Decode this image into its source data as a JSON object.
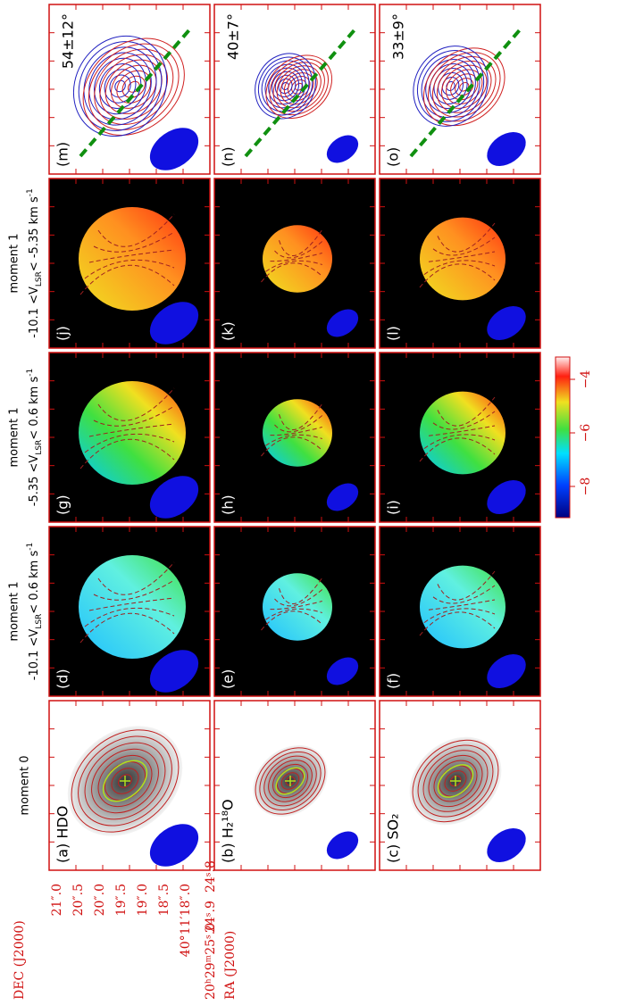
{
  "rows": [
    {
      "panels": [
        {
          "label": "(m)",
          "angle": "54±12°"
        },
        {
          "label": "(n)",
          "angle": "40±7°"
        },
        {
          "label": "(o)",
          "angle": "33±9°"
        }
      ]
    },
    {
      "header": {
        "title": "moment 1",
        "range": [
          "-10.1 <V",
          "LSR",
          "< -5.35 km s",
          "-1"
        ]
      },
      "panels": [
        {
          "label": "(j)"
        },
        {
          "label": "(k)"
        },
        {
          "label": "(l)"
        }
      ]
    },
    {
      "header": {
        "title": "moment 1",
        "range": [
          "-5.35 <V",
          "LSR",
          "< 0.6 km s",
          "-1"
        ]
      },
      "panels": [
        {
          "label": "(g)"
        },
        {
          "label": "(h)"
        },
        {
          "label": "(i)"
        }
      ]
    },
    {
      "header": {
        "title": "moment 1",
        "range": [
          "-10.1 <V",
          "LSR",
          "< 0.6 km s",
          "-1"
        ]
      },
      "panels": [
        {
          "label": "(d)"
        },
        {
          "label": "(e)"
        },
        {
          "label": "(f)"
        }
      ]
    },
    {
      "header": {
        "title": "moment 0"
      },
      "panels": [
        {
          "label": "(a) HDO"
        },
        {
          "label": "(b) H₂¹⁸O"
        },
        {
          "label": "(c) SO₂"
        }
      ]
    }
  ],
  "colorbar": {
    "ticks": [
      "−8",
      "−6",
      "−4"
    ]
  },
  "axes": {
    "dec_title": "DEC (J2000)",
    "dec_ticks": [
      "21″.0",
      "20″.5",
      "20″.0",
      "19″.5",
      "19″.0",
      "18″.5",
      "40°11′18″.0"
    ],
    "ra_title": "RA (J2000)",
    "ra_ticks": [
      "20ʰ29ᵐ25ˢ.0",
      "24ˢ.9",
      "24ˢ.8"
    ]
  }
}
